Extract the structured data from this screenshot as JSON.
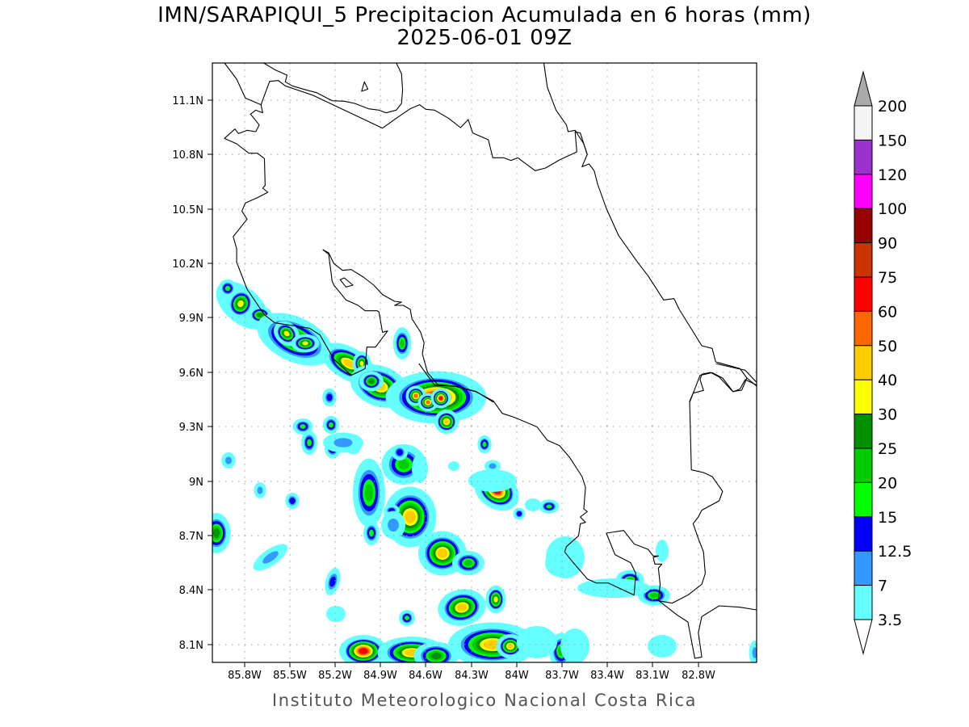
{
  "title": {
    "line1": "IMN/SARAPIQUI_5 Precipitacion Acumulada en 6 horas (mm)",
    "line2": "2025-06-01 09Z"
  },
  "footer": "Instituto Meteorologico Nacional Costa Rica",
  "map": {
    "lat_ticks": [
      "11.1N",
      "10.8N",
      "10.5N",
      "10.2N",
      "9.9N",
      "9.6N",
      "9.3N",
      "9N",
      "8.7N",
      "8.4N",
      "8.1N"
    ],
    "lon_ticks": [
      "85.8W",
      "85.5W",
      "85.2W",
      "84.9W",
      "84.6W",
      "84.3W",
      "84W",
      "83.7W",
      "83.4W",
      "83.1W",
      "82.8W"
    ],
    "grid": "dotted"
  },
  "colorbar": {
    "labels": [
      "200",
      "150",
      "120",
      "100",
      "90",
      "75",
      "60",
      "50",
      "40",
      "30",
      "25",
      "20",
      "15",
      "12.5",
      "7",
      "3.5"
    ],
    "colors": [
      "#f4f4f4",
      "#9933cc",
      "#ff00ff",
      "#990000",
      "#cc3300",
      "#ff0000",
      "#ff6600",
      "#ffcc00",
      "#ffff00",
      "#009100",
      "#00cc00",
      "#00ff00",
      "#0000ff",
      "#3399ff",
      "#66ffff"
    ],
    "over_color": "#aaaaaa",
    "under_color": "#ffffff"
  }
}
